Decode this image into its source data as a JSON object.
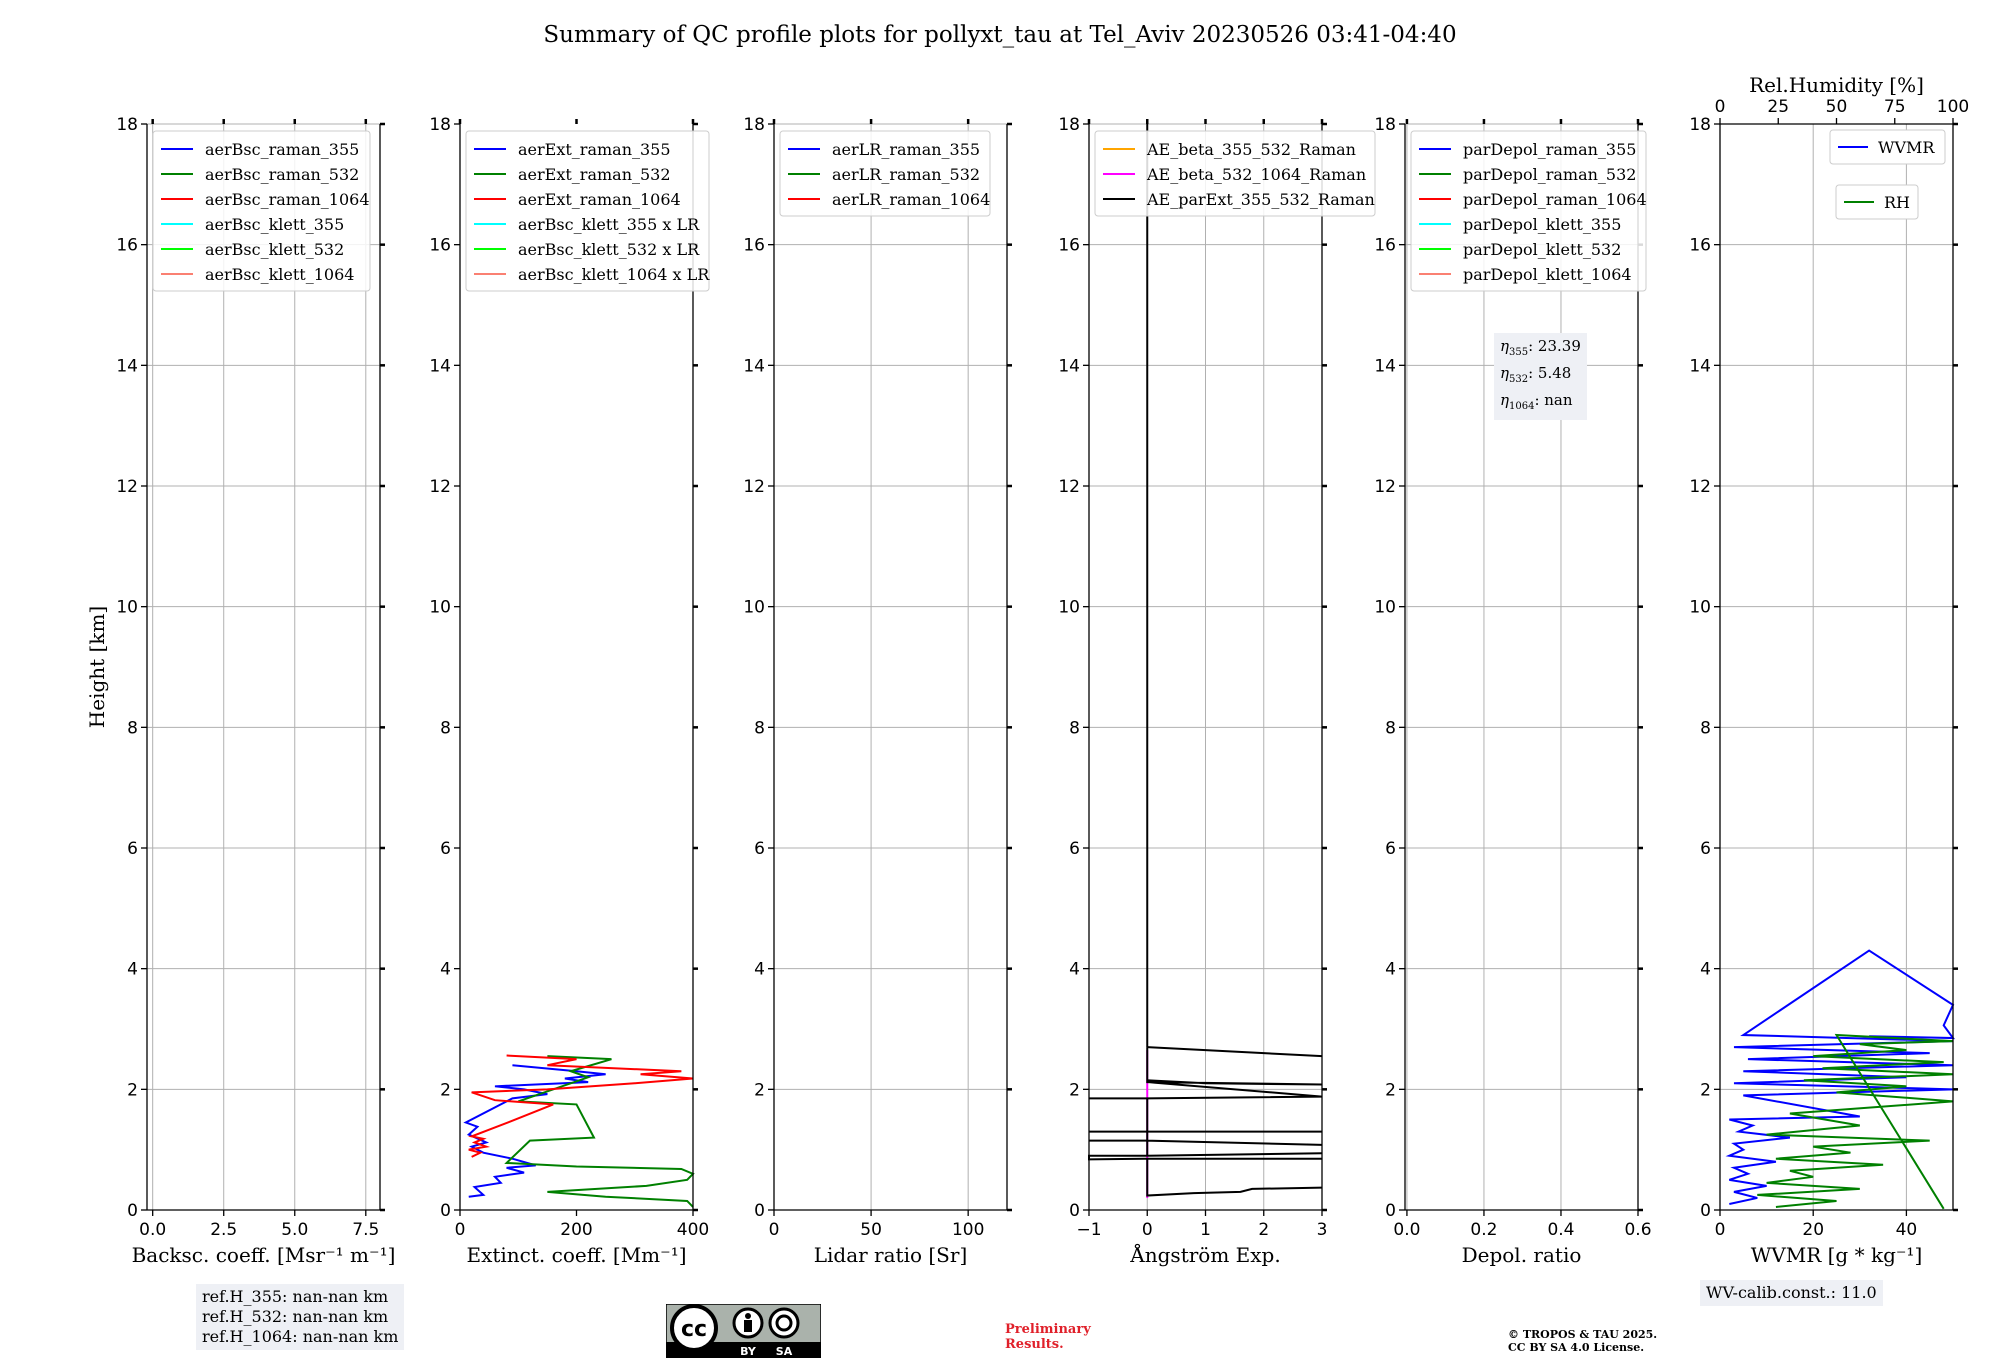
{
  "title": "Summary of QC profile plots for pollyxt_tau at Tel_Aviv 20230526 03:41-04:40",
  "ylabel": "Height [km]",
  "y_ticks": [
    0,
    2,
    4,
    6,
    8,
    10,
    12,
    14,
    16,
    18
  ],
  "chart_data": [
    {
      "type": "line",
      "xlabel": "Backsc. coeff. [Msr⁻¹ m⁻¹]",
      "xlim": [
        -0.2,
        8.0
      ],
      "ylim": [
        0,
        18
      ],
      "x_ticks": [
        0.0,
        2.5,
        5.0,
        7.5
      ],
      "x_tick_labels": [
        "0.0",
        "2.5",
        "5.0",
        "7.5"
      ],
      "grid": true,
      "legend_position": "upper-left",
      "series": [
        {
          "name": "aerBsc_raman_355",
          "color": "#0000ff",
          "x": [],
          "y": []
        },
        {
          "name": "aerBsc_raman_532",
          "color": "#008000",
          "x": [],
          "y": []
        },
        {
          "name": "aerBsc_raman_1064",
          "color": "#ff0000",
          "x": [],
          "y": []
        },
        {
          "name": "aerBsc_klett_355",
          "color": "#00ffff",
          "x": [],
          "y": []
        },
        {
          "name": "aerBsc_klett_532",
          "color": "#00ff00",
          "x": [],
          "y": []
        },
        {
          "name": "aerBsc_klett_1064",
          "color": "#fa8072",
          "x": [],
          "y": []
        }
      ]
    },
    {
      "type": "line",
      "xlabel": "Extinct. coeff. [Mm⁻¹]",
      "xlim": [
        0,
        400
      ],
      "ylim": [
        0,
        18
      ],
      "x_ticks": [
        0,
        200,
        400
      ],
      "x_tick_labels": [
        "0",
        "200",
        "400"
      ],
      "grid": false,
      "legend_position": "upper-left",
      "series": [
        {
          "name": "aerExt_raman_355",
          "color": "#0000ff",
          "x": [
            15,
            40,
            25,
            70,
            60,
            110,
            80,
            130,
            90,
            40,
            20,
            45,
            15,
            30,
            10,
            90,
            150,
            110,
            60,
            220,
            180,
            250,
            200,
            90
          ],
          "y": [
            0.22,
            0.25,
            0.38,
            0.45,
            0.55,
            0.62,
            0.7,
            0.74,
            0.85,
            0.95,
            1.05,
            1.12,
            1.25,
            1.38,
            1.45,
            1.85,
            1.92,
            2.0,
            2.05,
            2.12,
            2.18,
            2.25,
            2.3,
            2.4
          ]
        },
        {
          "name": "aerExt_raman_532",
          "color": "#008000",
          "x": [
            400,
            390,
            250,
            150,
            320,
            390,
            400,
            380,
            200,
            80,
            120,
            230,
            200,
            100,
            220,
            190,
            260,
            150
          ],
          "y": [
            0.05,
            0.15,
            0.22,
            0.3,
            0.4,
            0.5,
            0.6,
            0.68,
            0.72,
            0.78,
            1.15,
            1.2,
            1.75,
            1.8,
            2.2,
            2.3,
            2.5,
            2.55
          ]
        },
        {
          "name": "aerExt_raman_1064",
          "color": "#ff0000",
          "x": [
            20,
            35,
            15,
            45,
            25,
            40,
            20,
            55,
            90,
            160,
            60,
            20,
            150,
            300,
            400,
            310,
            380,
            150,
            200,
            80
          ],
          "y": [
            0.88,
            0.95,
            1.0,
            1.05,
            1.12,
            1.18,
            1.22,
            1.35,
            1.48,
            1.75,
            1.82,
            1.95,
            2.0,
            2.1,
            2.18,
            2.25,
            2.3,
            2.4,
            2.5,
            2.56
          ]
        },
        {
          "name": "aerBsc_klett_355 x LR",
          "color": "#00ffff",
          "x": [],
          "y": []
        },
        {
          "name": "aerBsc_klett_532 x LR",
          "color": "#00ff00",
          "x": [],
          "y": []
        },
        {
          "name": "aerBsc_klett_1064 x LR",
          "color": "#fa8072",
          "x": [],
          "y": []
        }
      ]
    },
    {
      "type": "line",
      "xlabel": "Lidar ratio [Sr]",
      "xlim": [
        0,
        120
      ],
      "ylim": [
        0,
        18
      ],
      "x_ticks": [
        0,
        50,
        100
      ],
      "x_tick_labels": [
        "0",
        "50",
        "100"
      ],
      "grid": true,
      "legend_position": "upper-left",
      "series": [
        {
          "name": "aerLR_raman_355",
          "color": "#0000ff",
          "x": [],
          "y": []
        },
        {
          "name": "aerLR_raman_532",
          "color": "#008000",
          "x": [],
          "y": []
        },
        {
          "name": "aerLR_raman_1064",
          "color": "#ff0000",
          "x": [],
          "y": []
        }
      ]
    },
    {
      "type": "line",
      "xlabel": "Ångström Exp.",
      "xlim": [
        -1,
        3
      ],
      "ylim": [
        0,
        18
      ],
      "x_ticks": [
        -1,
        0,
        1,
        2,
        3
      ],
      "x_tick_labels": [
        "−1",
        "0",
        "1",
        "2",
        "3"
      ],
      "grid": true,
      "legend_position": "upper-left",
      "series": [
        {
          "name": "AE_beta_355_532_Raman",
          "color": "#ffa500",
          "x": [],
          "y": []
        },
        {
          "name": "AE_beta_532_1064_Raman",
          "color": "#ff00ff",
          "x": [
            0,
            0
          ],
          "y": [
            0.2,
            2.65
          ]
        },
        {
          "name": "AE_parExt_355_532_Raman",
          "color": "#000000",
          "x": [
            3,
            1.8,
            1.6,
            0.8,
            0,
            0,
            3,
            0,
            0,
            -1,
            -1,
            0,
            0,
            0,
            3,
            0,
            0,
            -1,
            -1,
            0,
            0,
            3,
            0,
            0,
            -1,
            -1,
            0,
            0,
            3,
            0,
            0,
            -1,
            -1,
            0,
            0,
            3,
            0,
            0,
            1,
            3,
            0,
            0
          ],
          "y": [
            0.37,
            0.35,
            0.3,
            0.28,
            0.24,
            0.85,
            0.85,
            0.85,
            0.85,
            0.84,
            0.9,
            0.9,
            0.9,
            0.9,
            0.94,
            0.9,
            1.15,
            1.15,
            1.15,
            1.15,
            1.15,
            1.08,
            1.15,
            1.3,
            1.3,
            1.3,
            1.3,
            1.3,
            1.3,
            1.3,
            1.85,
            1.85,
            1.85,
            1.85,
            1.85,
            1.88,
            2.12,
            2.15,
            2.1,
            2.08,
            2.12,
            2.7
          ]
        },
        {
          "name": "",
          "color": "#000000",
          "x": [
            0,
            1,
            2,
            3
          ],
          "y": [
            2.7,
            2.65,
            2.6,
            2.55
          ]
        },
        {
          "name": "",
          "color": "#000000",
          "x": [
            0,
            0
          ],
          "y": [
            2.7,
            18
          ]
        }
      ]
    },
    {
      "type": "line",
      "xlabel": "Depol. ratio",
      "xlim": [
        -0.005,
        0.6
      ],
      "ylim": [
        0,
        18
      ],
      "x_ticks": [
        0.0,
        0.2,
        0.4,
        0.6
      ],
      "x_tick_labels": [
        "0.0",
        "0.2",
        "0.4",
        "0.6"
      ],
      "grid": true,
      "legend_position": "upper-left",
      "series": [
        {
          "name": "parDepol_raman_355",
          "color": "#0000ff",
          "x": [],
          "y": []
        },
        {
          "name": "parDepol_raman_532",
          "color": "#008000",
          "x": [],
          "y": []
        },
        {
          "name": "parDepol_raman_1064",
          "color": "#ff0000",
          "x": [],
          "y": []
        },
        {
          "name": "parDepol_klett_355",
          "color": "#00ffff",
          "x": [],
          "y": []
        },
        {
          "name": "parDepol_klett_532",
          "color": "#00ff00",
          "x": [],
          "y": []
        },
        {
          "name": "parDepol_klett_1064",
          "color": "#fa8072",
          "x": [],
          "y": []
        }
      ]
    },
    {
      "type": "line",
      "xlabel": "WVMR [g * kg⁻¹]",
      "xlim": [
        0,
        50
      ],
      "ylim": [
        0,
        18
      ],
      "x_ticks": [
        0,
        20,
        40
      ],
      "x_tick_labels": [
        "0",
        "20",
        "40"
      ],
      "grid": true,
      "legend_position": "upper-right",
      "top_axis": {
        "label": "Rel.Humidity [%]",
        "xlim": [
          0,
          100
        ],
        "ticks": [
          0,
          25,
          50,
          75,
          100
        ],
        "tick_labels": [
          "0",
          "25",
          "50",
          "75",
          "100"
        ]
      },
      "series": [
        {
          "name": "WVMR",
          "color": "#0000ff",
          "x": [
            2,
            8,
            3,
            10,
            2,
            6,
            3,
            12,
            2,
            5,
            3,
            15,
            4,
            7,
            2,
            30,
            5,
            50,
            3,
            40,
            5,
            50,
            6,
            45,
            3,
            50,
            5,
            32,
            50,
            48,
            50,
            32
          ],
          "y": [
            0.1,
            0.2,
            0.3,
            0.4,
            0.5,
            0.6,
            0.7,
            0.8,
            0.9,
            1.0,
            1.1,
            1.2,
            1.3,
            1.4,
            1.5,
            1.55,
            1.9,
            2.0,
            2.1,
            2.2,
            2.3,
            2.4,
            2.5,
            2.6,
            2.7,
            2.8,
            2.9,
            4.3,
            3.4,
            3.06,
            2.85,
            2.88
          ]
        },
        {
          "name": "RH",
          "color": "#008000",
          "x": [
            12,
            25,
            8,
            30,
            10,
            20,
            15,
            35,
            12,
            28,
            20,
            45,
            10,
            30,
            15,
            50,
            25,
            40,
            18,
            50,
            22,
            48,
            20,
            40,
            30,
            50,
            25,
            48
          ],
          "y": [
            0.05,
            0.15,
            0.25,
            0.35,
            0.45,
            0.55,
            0.65,
            0.75,
            0.85,
            0.95,
            1.05,
            1.15,
            1.25,
            1.4,
            1.6,
            1.8,
            1.95,
            2.05,
            2.15,
            2.25,
            2.35,
            2.45,
            2.55,
            2.65,
            2.75,
            2.8,
            2.9,
            0.02
          ]
        }
      ]
    }
  ],
  "annotations": {
    "ref_h": [
      "ref.H_355: nan-nan km",
      "ref.H_532: nan-nan km",
      "ref.H_1064: nan-nan km"
    ],
    "eta": [
      "η355: 23.39",
      "η532: 5.48",
      "η1064: nan"
    ],
    "wv_calib": "WV-calib.const.: 11.0",
    "preliminary": [
      "Preliminary",
      "Results."
    ],
    "copyright": [
      "© TROPOS & TAU 2025.",
      "CC BY SA 4.0 License."
    ],
    "cc_badge": [
      "BY",
      "SA"
    ]
  },
  "colors": {
    "grid": "#b0b0b0",
    "box_bg": "#eef0f5",
    "preliminary": "#e0202a"
  }
}
